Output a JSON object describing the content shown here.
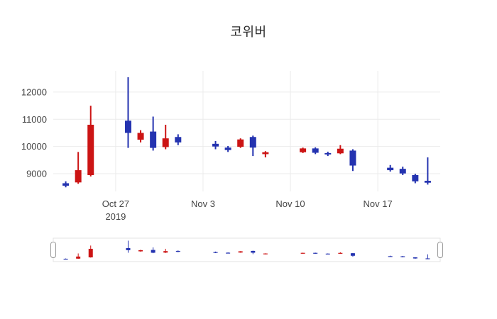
{
  "chart_data": {
    "type": "candlestick",
    "title": "코위버",
    "increasing_color": "#cc1414",
    "decreasing_color": "#2433b0",
    "grid_color": "#ebebeb",
    "text_color": "#444444",
    "ylim": [
      8350,
      12780
    ],
    "xlim": [
      "2019-10-22",
      "2019-11-22"
    ],
    "yticks": [
      9000,
      10000,
      11000,
      12000
    ],
    "xticks": [
      {
        "date": "2019-10-27",
        "lines": [
          "Oct 27",
          "2019"
        ]
      },
      {
        "date": "2019-11-03",
        "lines": [
          "Nov 3"
        ]
      },
      {
        "date": "2019-11-10",
        "lines": [
          "Nov 10"
        ]
      },
      {
        "date": "2019-11-17",
        "lines": [
          "Nov 17"
        ]
      }
    ],
    "x": [
      "2019-10-23",
      "2019-10-24",
      "2019-10-25",
      "2019-10-28",
      "2019-10-29",
      "2019-10-30",
      "2019-10-31",
      "2019-11-01",
      "2019-11-04",
      "2019-11-05",
      "2019-11-06",
      "2019-11-07",
      "2019-11-08",
      "2019-11-11",
      "2019-11-12",
      "2019-11-13",
      "2019-11-14",
      "2019-11-15",
      "2019-11-18",
      "2019-11-19",
      "2019-11-20",
      "2019-11-21"
    ],
    "open": [
      8650,
      8680,
      8950,
      10950,
      10250,
      10550,
      9980,
      10350,
      10100,
      9960,
      9990,
      10350,
      9720,
      9790,
      9930,
      9760,
      9750,
      9850,
      9220,
      9180,
      8950,
      8740
    ],
    "high": [
      8720,
      9800,
      11500,
      12550,
      10600,
      11100,
      10800,
      10450,
      10200,
      10020,
      10300,
      10400,
      9830,
      9960,
      9970,
      9810,
      10050,
      9900,
      9320,
      9260,
      9000,
      9600
    ],
    "low": [
      8500,
      8630,
      8900,
      9950,
      10150,
      9850,
      9900,
      10050,
      9900,
      9800,
      9950,
      9650,
      9600,
      9760,
      9720,
      9650,
      9720,
      9100,
      9080,
      8950,
      8650,
      8600
    ],
    "close": [
      8560,
      9130,
      10800,
      10500,
      10500,
      9950,
      10300,
      10150,
      10000,
      9870,
      10260,
      9960,
      9790,
      9930,
      9770,
      9710,
      9920,
      9300,
      9130,
      9010,
      8720,
      8670
    ],
    "rangeslider": true,
    "legend": "none",
    "grid": true
  }
}
